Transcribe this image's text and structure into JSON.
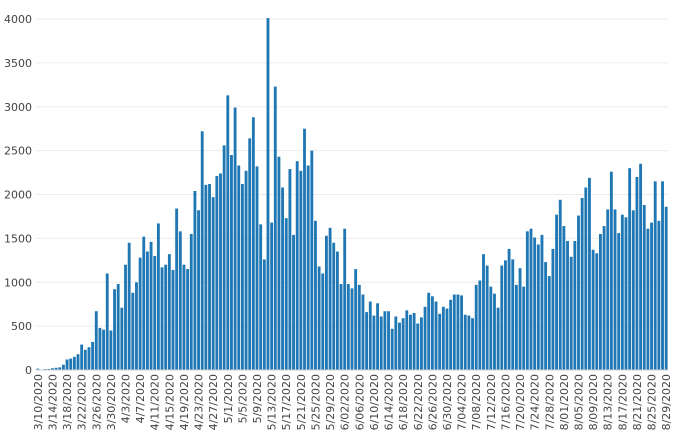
{
  "chart_data": {
    "type": "bar",
    "title": "",
    "xlabel": "",
    "ylabel": "",
    "ylim": [
      0,
      4000
    ],
    "yticks": [
      0,
      500,
      1000,
      1500,
      2000,
      2500,
      3000,
      3500,
      4000
    ],
    "x_range": [
      "3/10/2020",
      "8/30/2020"
    ],
    "bar_color": "#1f77b4",
    "grid": true,
    "legend": "none",
    "x_tick_labels": [
      "3/10/2020",
      "3/14/2020",
      "3/18/2020",
      "3/22/2020",
      "3/26/2020",
      "3/30/2020",
      "4/3/2020",
      "4/7/2020",
      "4/11/2020",
      "4/15/2020",
      "4/19/2020",
      "4/23/2020",
      "4/27/2020",
      "5/1/2020",
      "5/5/2020",
      "5/9/2020",
      "5/13/2020",
      "5/17/2020",
      "5/21/2020",
      "5/25/2020",
      "5/29/2020",
      "6/02/2020",
      "6/06/2020",
      "6/10/2020",
      "6/14/2020",
      "6/18/2020",
      "6/22/2020",
      "6/26/2020",
      "6/30/2020",
      "7/04/2020",
      "7/08/2020",
      "7/12/2020",
      "7/16/2020",
      "7/20/2020",
      "7/24/2020",
      "7/28/2020",
      "8/01/2020",
      "8/05/2020",
      "8/09/2020",
      "8/13/2020",
      "8/17/2020",
      "8/21/2020",
      "8/25/2020",
      "8/29/2020"
    ],
    "values": [
      15,
      5,
      10,
      12,
      20,
      25,
      30,
      60,
      120,
      130,
      150,
      180,
      290,
      230,
      260,
      320,
      670,
      480,
      460,
      1100,
      450,
      920,
      980,
      710,
      1200,
      1450,
      880,
      1000,
      1280,
      1520,
      1350,
      1460,
      1300,
      1670,
      1170,
      1200,
      1320,
      1140,
      1840,
      1580,
      1200,
      1150,
      1550,
      2040,
      1820,
      2720,
      2110,
      2120,
      1970,
      2210,
      2240,
      2560,
      3130,
      2450,
      2990,
      2330,
      2120,
      2270,
      2640,
      2880,
      2320,
      1660,
      1260,
      4010,
      1680,
      3230,
      2430,
      2080,
      1730,
      2290,
      1540,
      2380,
      2270,
      2750,
      2330,
      2500,
      1700,
      1180,
      1100,
      1530,
      1620,
      1450,
      1350,
      980,
      1610,
      980,
      930,
      1150,
      970,
      860,
      660,
      780,
      620,
      760,
      610,
      670,
      670,
      470,
      610,
      540,
      590,
      680,
      630,
      650,
      530,
      600,
      720,
      880,
      840,
      780,
      640,
      720,
      700,
      800,
      860,
      860,
      850,
      630,
      620,
      590,
      970,
      1020,
      1320,
      1190,
      950,
      870,
      710,
      1190,
      1250,
      1380,
      1260,
      970,
      1160,
      950,
      1580,
      1610,
      1510,
      1430,
      1540,
      1230,
      1070,
      1380,
      1770,
      1940,
      1640,
      1470,
      1290,
      1470,
      1760,
      1960,
      2080,
      2190,
      1370,
      1330,
      1550,
      1640,
      1830,
      2260,
      1830,
      1560,
      1770,
      1740,
      2300,
      1820,
      2200,
      2350,
      1880,
      1610,
      1680,
      2150,
      1700,
      2150,
      1860
    ]
  }
}
